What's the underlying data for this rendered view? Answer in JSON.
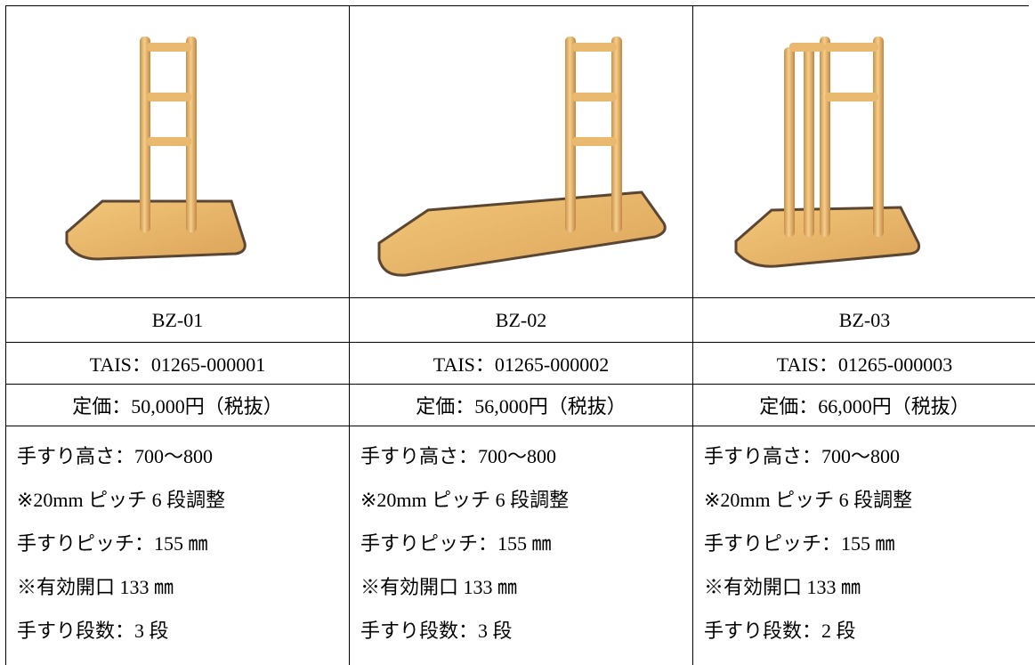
{
  "table": {
    "columns": [
      {
        "model": "BZ-01",
        "tais": "TAIS：01265-000001",
        "price": "定価：50,000円（税抜）",
        "specs": [
          "手すり高さ：700～800",
          "※20mm ピッチ 6 段調整",
          "手すりピッチ：155 ㎜",
          "※有効開口 133 ㎜",
          "手すり段数：3 段"
        ]
      },
      {
        "model": "BZ-02",
        "tais": "TAIS：01265-000002",
        "price": "定価：56,000円（税抜）",
        "specs": [
          "手すり高さ：700～800",
          "※20mm ピッチ 6 段調整",
          "手すりピッチ：155 ㎜",
          "※有効開口 133 ㎜",
          "手すり段数：3 段"
        ]
      },
      {
        "model": "BZ-03",
        "tais": "TAIS：01265-000003",
        "price": "定価：66,000円（税抜）",
        "specs": [
          "手すり高さ：700～800",
          "※20mm ピッチ 6 段調整",
          "手すりピッチ：155 ㎜",
          "※有効開口 133 ㎜",
          "手すり段数：2 段"
        ]
      }
    ]
  }
}
